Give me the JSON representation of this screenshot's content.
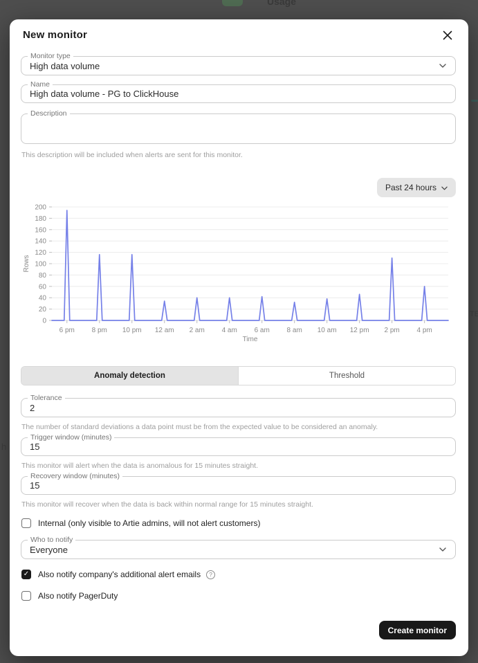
{
  "backdrop": {
    "usage_label": "Usage",
    "left_fragment": "h",
    "right_fragment": "TE"
  },
  "modal": {
    "title": "New monitor",
    "fields": {
      "monitor_type": {
        "label": "Monitor type",
        "value": "High data volume"
      },
      "name": {
        "label": "Name",
        "value": "High data volume - PG to ClickHouse"
      },
      "description": {
        "label": "Description",
        "value": "",
        "helper": "This description will be included when alerts are sent for this monitor."
      }
    },
    "chart": {
      "range_button": "Past 24 hours"
    },
    "tabs": [
      {
        "label": "Anomaly detection",
        "active": true
      },
      {
        "label": "Threshold",
        "active": false
      }
    ],
    "anomaly": {
      "tolerance": {
        "label": "Tolerance",
        "value": "2",
        "helper": "The number of standard deviations a data point must be from the expected value to be considered an anomaly."
      },
      "trigger": {
        "label": "Trigger window (minutes)",
        "value": "15",
        "helper": "This monitor will alert when the data is anomalous for 15 minutes straight."
      },
      "recovery": {
        "label": "Recovery window (minutes)",
        "value": "15",
        "helper": "This monitor will recover when the data is back within normal range for 15 minutes straight."
      }
    },
    "checkboxes": {
      "internal": {
        "label": "Internal (only visible to Artie admins, will not alert customers)",
        "checked": false
      },
      "alert_emails": {
        "label": "Also notify company's additional alert emails",
        "checked": true
      },
      "pagerduty": {
        "label": "Also notify PagerDuty",
        "checked": false
      }
    },
    "who_to_notify": {
      "label": "Who to notify",
      "value": "Everyone"
    },
    "create_button": "Create monitor"
  },
  "chart_data": {
    "type": "line",
    "title": "",
    "xlabel": "Time",
    "ylabel": "Rows",
    "ylim": [
      0,
      200
    ],
    "ytick_step": 20,
    "grid": true,
    "legend": "none",
    "line_color": "#7580e8",
    "categories": [
      "6 pm",
      "8 pm",
      "10 pm",
      "12 am",
      "2 am",
      "4 am",
      "6 am",
      "8 am",
      "10 am",
      "12 pm",
      "2 pm",
      "4 pm"
    ],
    "values": [
      194,
      116,
      116,
      34,
      40,
      40,
      42,
      32,
      38,
      46,
      110,
      60
    ],
    "baseline_value": 0,
    "shape": "narrow spikes at each 2-hour tick returning to 0 between spikes"
  }
}
